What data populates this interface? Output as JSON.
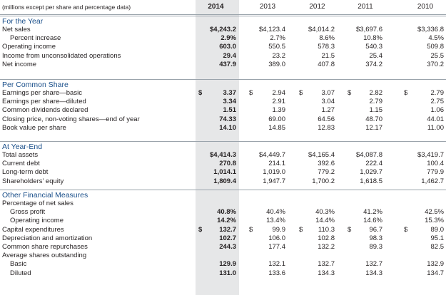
{
  "header": {
    "units_note": "(millions except per share and percentage data)",
    "years": [
      "2014",
      "2013",
      "2012",
      "2011",
      "2010"
    ]
  },
  "sections": [
    {
      "title": "For the Year",
      "rows": [
        {
          "label": "Net sales",
          "indent": false,
          "values": [
            "$4,243.2",
            "$4,123.4",
            "$4,014.2",
            "$3,697.6",
            "$3,336.8"
          ]
        },
        {
          "label": "Percent increase",
          "indent": true,
          "values": [
            "2.9%",
            "2.7%",
            "8.6%",
            "10.8%",
            "4.5%"
          ]
        },
        {
          "label": "Operating income",
          "indent": false,
          "values": [
            "603.0",
            "550.5",
            "578.3",
            "540.3",
            "509.8"
          ]
        },
        {
          "label": "Income from unconsolidated operations",
          "indent": false,
          "values": [
            "29.4",
            "23.2",
            "21.5",
            "25.4",
            "25.5"
          ]
        },
        {
          "label": "Net income",
          "indent": false,
          "values": [
            "437.9",
            "389.0",
            "407.8",
            "374.2",
            "370.2"
          ]
        }
      ]
    },
    {
      "title": "Per Common Share",
      "rows": [
        {
          "label": "Earnings per share—basic",
          "indent": false,
          "dollar": true,
          "values": [
            "3.37",
            "2.94",
            "3.07",
            "2.82",
            "2.79"
          ]
        },
        {
          "label": "Earnings per share—diluted",
          "indent": false,
          "values": [
            "3.34",
            "2.91",
            "3.04",
            "2.79",
            "2.75"
          ]
        },
        {
          "label": "Common dividends declared",
          "indent": false,
          "values": [
            "1.51",
            "1.39",
            "1.27",
            "1.15",
            "1.06"
          ]
        },
        {
          "label": "Closing price, non-voting shares—end of year",
          "indent": false,
          "values": [
            "74.33",
            "69.00",
            "64.56",
            "48.70",
            "44.01"
          ]
        },
        {
          "label": "Book value per share",
          "indent": false,
          "values": [
            "14.10",
            "14.85",
            "12.83",
            "12.17",
            "11.00"
          ]
        }
      ]
    },
    {
      "title": "At Year-End",
      "rows": [
        {
          "label": "Total assets",
          "indent": false,
          "values": [
            "$4,414.3",
            "$4,449.7",
            "$4,165.4",
            "$4,087.8",
            "$3,419.7"
          ]
        },
        {
          "label": "Current debt",
          "indent": false,
          "values": [
            "270.8",
            "214.1",
            "392.6",
            "222.4",
            "100.4"
          ]
        },
        {
          "label": "Long-term debt",
          "indent": false,
          "values": [
            "1,014.1",
            "1,019.0",
            "779.2",
            "1,029.7",
            "779.9"
          ]
        },
        {
          "label": "Shareholders’ equity",
          "indent": false,
          "values": [
            "1,809.4",
            "1,947.7",
            "1,700.2",
            "1,618.5",
            "1,462.7"
          ]
        }
      ]
    },
    {
      "title": "Other Financial Measures",
      "rows": [
        {
          "label": "Percentage of net sales",
          "indent": false,
          "values": [
            "",
            "",
            "",
            "",
            ""
          ]
        },
        {
          "label": "Gross profit",
          "indent": true,
          "values": [
            "40.8%",
            "40.4%",
            "40.3%",
            "41.2%",
            "42.5%"
          ]
        },
        {
          "label": "Operating income",
          "indent": true,
          "values": [
            "14.2%",
            "13.4%",
            "14.4%",
            "14.6%",
            "15.3%"
          ]
        },
        {
          "label": "Capital expenditures",
          "indent": false,
          "dollar": true,
          "values": [
            "132.7",
            "99.9",
            "110.3",
            "96.7",
            "89.0"
          ]
        },
        {
          "label": "Depreciation and amortization",
          "indent": false,
          "values": [
            "102.7",
            "106.0",
            "102.8",
            "98.3",
            "95.1"
          ]
        },
        {
          "label": "Common share repurchases",
          "indent": false,
          "values": [
            "244.3",
            "177.4",
            "132.2",
            "89.3",
            "82.5"
          ]
        },
        {
          "label": "Average shares outstanding",
          "indent": false,
          "values": [
            "",
            "",
            "",
            "",
            ""
          ]
        },
        {
          "label": "Basic",
          "indent": true,
          "values": [
            "129.9",
            "132.1",
            "132.7",
            "132.7",
            "132.9"
          ]
        },
        {
          "label": "Diluted",
          "indent": true,
          "values": [
            "131.0",
            "133.6",
            "134.3",
            "134.3",
            "134.7"
          ]
        }
      ]
    }
  ]
}
